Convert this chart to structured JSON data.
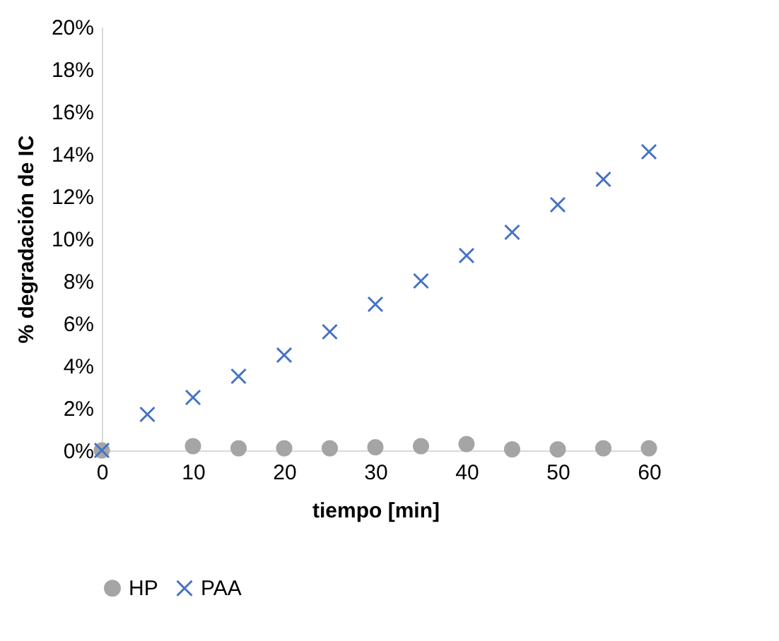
{
  "chart_data": {
    "type": "scatter",
    "xlabel": "tiempo [min]",
    "ylabel": "% degradación de IC",
    "xlim": [
      0,
      60
    ],
    "xticks": [
      0,
      10,
      20,
      30,
      40,
      50,
      60
    ],
    "ylim": [
      0,
      20
    ],
    "yticks": [
      {
        "value": 0,
        "label": "0%"
      },
      {
        "value": 2,
        "label": "2%"
      },
      {
        "value": 4,
        "label": "4%"
      },
      {
        "value": 6,
        "label": "6%"
      },
      {
        "value": 8,
        "label": "8%"
      },
      {
        "value": 10,
        "label": "10%"
      },
      {
        "value": 12,
        "label": "12%"
      },
      {
        "value": 14,
        "label": "14%"
      },
      {
        "value": 16,
        "label": "16%"
      },
      {
        "value": 18,
        "label": "18%"
      },
      {
        "value": 20,
        "label": "20%"
      }
    ],
    "grid": false,
    "legend": "bottom",
    "series": [
      {
        "name": "HP",
        "color": "#a5a5a5",
        "marker": "circle",
        "x": [
          0,
          10,
          15,
          20,
          25,
          30,
          35,
          40,
          45,
          50,
          55,
          60
        ],
        "values": [
          0,
          0.2,
          0.1,
          0.1,
          0.1,
          0.15,
          0.2,
          0.3,
          0.05,
          0.05,
          0.1,
          0.1
        ]
      },
      {
        "name": "PAA",
        "color": "#4472c4",
        "marker": "cross",
        "x": [
          0,
          5,
          10,
          15,
          20,
          25,
          30,
          35,
          40,
          45,
          50,
          55,
          60
        ],
        "values": [
          0,
          1.7,
          2.5,
          3.5,
          4.5,
          5.6,
          6.9,
          8.0,
          9.2,
          10.3,
          11.6,
          12.8,
          14.1
        ]
      }
    ]
  }
}
